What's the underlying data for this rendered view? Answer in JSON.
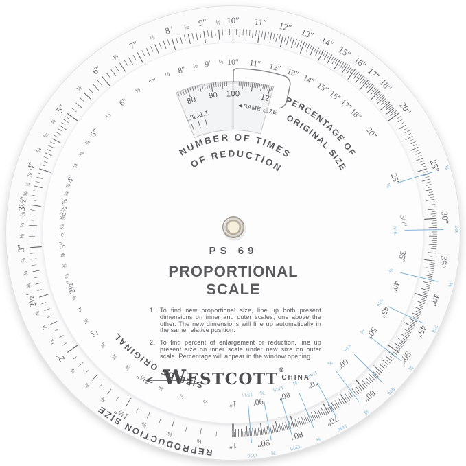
{
  "wheel": {
    "model": "PS 69",
    "title": "PROPORTIONAL SCALE",
    "instructions": [
      {
        "num": "1.",
        "text": "To find new proportional size, line up both present dimensions on inner and outer scales, one above the other. The new dimensions will line up automatically in the same relative position."
      },
      {
        "num": "2.",
        "text": "To find percent of enlargement or reduction, line up present size on inner scale under new size on outer scale. Percentage will appear in the window opening."
      }
    ],
    "brand_w": "W",
    "brand_rest": "ESTCOTT",
    "registered": "®",
    "country": "CHINA",
    "captions": {
      "window_line1": "NUMBER OF TIMES",
      "window_line2": "OF REDUCTION",
      "pointer_line1": "PERCENTAGE OF",
      "pointer_line2": "ORIGINAL SIZE",
      "outer_ring_label": "SIZE OF ORIGINAL",
      "rim_ring_label": "REPRODUCTION SIZE",
      "same_size": "◄SAME SIZE"
    },
    "window_scale": {
      "percent_tick_min": 73,
      "percent_tick_max": 127,
      "percent_labels": [
        "80",
        "90",
        "100",
        "120"
      ],
      "reduction_labels": [
        "1.3",
        "1.2",
        "1.1"
      ]
    },
    "scale_labels": [
      [
        1,
        "1″"
      ],
      [
        1.125,
        "⅛"
      ],
      [
        1.25,
        "¼"
      ],
      [
        1.375,
        "⅜"
      ],
      [
        1.5,
        "1½″"
      ],
      [
        1.625,
        "⅝"
      ],
      [
        1.75,
        "¾"
      ],
      [
        1.875,
        "⅞"
      ],
      [
        2,
        "2″"
      ],
      [
        2.125,
        "⅛"
      ],
      [
        2.25,
        "¼"
      ],
      [
        2.375,
        "⅜"
      ],
      [
        2.5,
        "2½″"
      ],
      [
        2.625,
        "⅝"
      ],
      [
        2.75,
        "¾"
      ],
      [
        2.875,
        "⅞"
      ],
      [
        3,
        "3″"
      ],
      [
        3.125,
        "⅛"
      ],
      [
        3.25,
        "¼"
      ],
      [
        3.375,
        "⅜"
      ],
      [
        3.5,
        "3½″"
      ],
      [
        3.625,
        "⅝"
      ],
      [
        3.75,
        "¾"
      ],
      [
        3.875,
        "⅞"
      ],
      [
        4,
        "4″"
      ],
      [
        4.25,
        "¼"
      ],
      [
        4.5,
        "½"
      ],
      [
        4.75,
        "¾"
      ],
      [
        5,
        "5″"
      ],
      [
        5.5,
        "½"
      ],
      [
        6,
        "6″"
      ],
      [
        6.5,
        "½"
      ],
      [
        7,
        "7″"
      ],
      [
        7.5,
        "½"
      ],
      [
        8,
        "8″"
      ],
      [
        8.5,
        "½"
      ],
      [
        9,
        "9″"
      ],
      [
        9.5,
        "½"
      ],
      [
        10,
        "10″"
      ],
      [
        11,
        "11″"
      ],
      [
        12,
        "12″"
      ],
      [
        13,
        "13″"
      ],
      [
        14,
        "14″"
      ],
      [
        15,
        "15″"
      ],
      [
        16,
        "16″"
      ],
      [
        17,
        "17″"
      ],
      [
        18,
        "18″"
      ],
      [
        20,
        "20″"
      ],
      [
        25,
        "25″"
      ],
      [
        30,
        "30″"
      ],
      [
        35,
        "35″"
      ],
      [
        40,
        "40″"
      ],
      [
        45,
        "45″"
      ],
      [
        50,
        "50″"
      ],
      [
        60,
        "60″"
      ],
      [
        70,
        "70″"
      ],
      [
        80,
        "80″"
      ],
      [
        90,
        "90″"
      ]
    ],
    "blue_fractions": [
      [
        25,
        "¼"
      ],
      [
        31.25,
        "5⁄16"
      ],
      [
        37.5,
        "⅜"
      ],
      [
        43.75,
        "7⁄16"
      ],
      [
        50,
        "½"
      ],
      [
        56.25,
        "9⁄16"
      ],
      [
        62.5,
        "⅝"
      ],
      [
        68.75,
        "11⁄16"
      ],
      [
        75,
        "¾"
      ],
      [
        81.25,
        "13⁄16"
      ],
      [
        87.5,
        "⅞"
      ],
      [
        93.75,
        "15⁄16"
      ]
    ],
    "tick_ranges": [
      [
        1,
        2,
        0.0625
      ],
      [
        2,
        5,
        0.0625
      ],
      [
        5,
        10,
        0.125
      ],
      [
        10,
        20,
        0.125
      ],
      [
        20,
        50,
        0.25
      ],
      [
        50,
        100,
        0.5
      ]
    ],
    "colors": {
      "ink": "#606063",
      "numbers": "#67676a",
      "captions": "#59595c",
      "blue": "#6fabcf",
      "disc": "#fbfbfc",
      "top_disc": "#fdfdfe",
      "window_fill": "#f3f4f6"
    }
  }
}
